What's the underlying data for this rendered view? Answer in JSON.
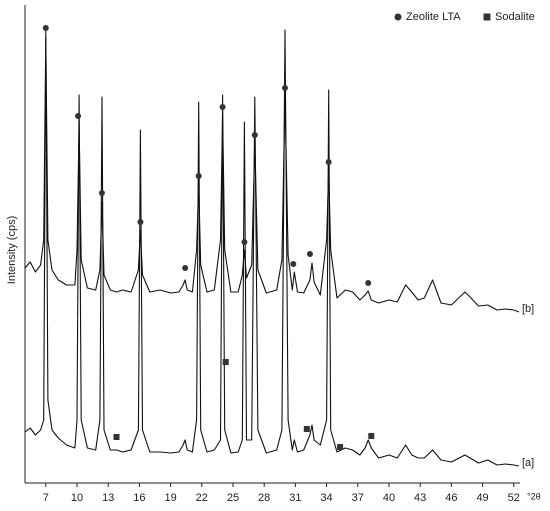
{
  "chart_data": {
    "type": "line",
    "x_label": "°2θ",
    "y_label": "Intensity (cps)",
    "xlim": [
      5,
      52.6
    ],
    "ylim": [
      0,
      463
    ],
    "xticks": [
      7,
      10,
      13,
      16,
      19,
      22,
      25,
      28,
      31,
      34,
      37,
      40,
      43,
      46,
      49,
      52
    ],
    "x": [
      5.0,
      5.5,
      6.0,
      6.5,
      6.8,
      7.0,
      7.2,
      7.6,
      8.2,
      9.0,
      9.8,
      10.0,
      10.2,
      10.4,
      11.0,
      11.8,
      12.2,
      12.4,
      12.6,
      13.2,
      13.8,
      14.4,
      15.2,
      15.9,
      16.1,
      16.3,
      17.0,
      18.0,
      19.0,
      19.8,
      20.2,
      20.4,
      20.6,
      21.1,
      21.5,
      21.7,
      21.9,
      22.5,
      23.2,
      23.8,
      24.0,
      24.2,
      24.8,
      25.5,
      25.9,
      26.1,
      26.3,
      26.8,
      27.1,
      27.4,
      28.2,
      29.2,
      29.7,
      30.0,
      30.3,
      30.7,
      30.9,
      31.2,
      31.8,
      32.4,
      32.6,
      32.8,
      33.4,
      34.0,
      34.2,
      34.4,
      35.0,
      35.8,
      36.5,
      37.2,
      37.7,
      38.0,
      38.3,
      39.0,
      40.0,
      40.8,
      41.6,
      42.2,
      42.8,
      43.4,
      44.2,
      45.0,
      46.0,
      47.3,
      47.8,
      48.6,
      49.5,
      50.4,
      51.2,
      52.0,
      52.5
    ],
    "series": [
      {
        "name": "[b]",
        "color": "#111111",
        "values": [
          215,
          221,
          211,
          218,
          243,
          445,
          243,
          213,
          203,
          198,
          198,
          233,
          358,
          223,
          195,
          193,
          213,
          281,
          208,
          193,
          191,
          193,
          191,
          213,
          253,
          208,
          191,
          193,
          190,
          191,
          198,
          203,
          193,
          191,
          233,
          299,
          218,
          191,
          193,
          243,
          369,
          233,
          191,
          191,
          208,
          233,
          205,
          218,
          340,
          213,
          190,
          193,
          223,
          388,
          228,
          193,
          211,
          191,
          190,
          203,
          220,
          201,
          188,
          243,
          313,
          233,
          185,
          193,
          191,
          183,
          188,
          192,
          183,
          180,
          183,
          181,
          198,
          191,
          183,
          185,
          203,
          180,
          178,
          191,
          186,
          177,
          178,
          173,
          174,
          173,
          171
        ]
      },
      {
        "name": "[a]",
        "color": "#111111",
        "values": [
          51,
          55,
          48,
          53,
          63,
          453,
          83,
          53,
          45,
          38,
          35,
          63,
          388,
          63,
          35,
          33,
          63,
          386,
          53,
          33,
          33,
          31,
          33,
          53,
          353,
          53,
          31,
          31,
          30,
          31,
          38,
          43,
          33,
          31,
          63,
          381,
          53,
          31,
          33,
          43,
          388,
          53,
          30,
          31,
          43,
          361,
          43,
          43,
          386,
          53,
          30,
          33,
          53,
          453,
          63,
          33,
          43,
          31,
          33,
          48,
          58,
          43,
          38,
          63,
          393,
          53,
          31,
          35,
          33,
          28,
          35,
          43,
          35,
          25,
          28,
          25,
          38,
          28,
          25,
          25,
          33,
          23,
          21,
          28,
          25,
          20,
          23,
          18,
          19,
          18,
          17
        ]
      }
    ],
    "legend": [
      {
        "label": "Zeolite LTA",
        "shape": "circle"
      },
      {
        "label": "Sodalite",
        "shape": "square"
      }
    ],
    "markers": [
      {
        "legend": 0,
        "x": 7.0,
        "y": 455
      },
      {
        "legend": 0,
        "x": 10.1,
        "y": 367
      },
      {
        "legend": 0,
        "x": 12.4,
        "y": 290
      },
      {
        "legend": 0,
        "x": 16.1,
        "y": 261
      },
      {
        "legend": 0,
        "x": 20.4,
        "y": 215
      },
      {
        "legend": 0,
        "x": 21.7,
        "y": 307
      },
      {
        "legend": 0,
        "x": 24.0,
        "y": 376
      },
      {
        "legend": 0,
        "x": 26.1,
        "y": 241
      },
      {
        "legend": 0,
        "x": 27.1,
        "y": 348
      },
      {
        "legend": 0,
        "x": 30.0,
        "y": 395
      },
      {
        "legend": 0,
        "x": 30.8,
        "y": 219
      },
      {
        "legend": 0,
        "x": 32.4,
        "y": 229
      },
      {
        "legend": 0,
        "x": 34.2,
        "y": 321
      },
      {
        "legend": 0,
        "x": 38.0,
        "y": 200
      },
      {
        "legend": 1,
        "x": 13.8,
        "y": 46
      },
      {
        "legend": 1,
        "x": 24.3,
        "y": 121
      },
      {
        "legend": 1,
        "x": 32.1,
        "y": 54
      },
      {
        "legend": 1,
        "x": 35.3,
        "y": 36
      },
      {
        "legend": 1,
        "x": 38.3,
        "y": 47
      }
    ],
    "marker_color": "#333333"
  }
}
